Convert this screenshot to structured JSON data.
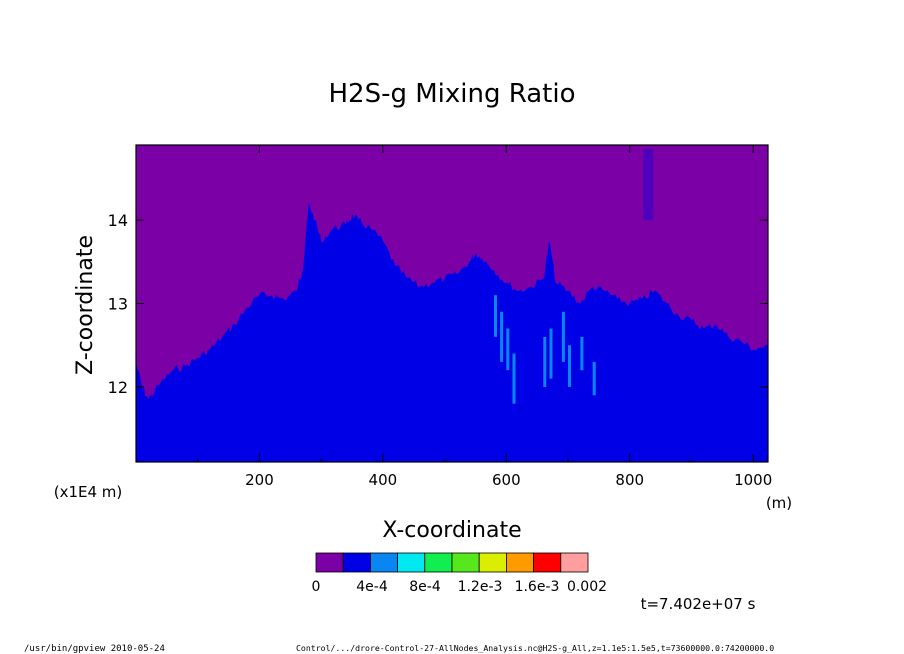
{
  "chart_data": {
    "type": "heatmap",
    "title": "H2S-g Mixing Ratio",
    "xlabel": "X-coordinate",
    "ylabel": "Z-coordinate",
    "x_unit": "(m)",
    "y_scale_label": "(x1E4 m)",
    "xlim": [
      0,
      1024
    ],
    "ylim": [
      11.1,
      14.9
    ],
    "x_ticks": [
      200,
      400,
      600,
      800,
      1000
    ],
    "y_ticks": [
      12,
      13,
      14
    ],
    "x_tick_labels": [
      "200",
      "400",
      "600",
      "800",
      "1000"
    ],
    "y_tick_labels": [
      "12",
      "13",
      "14"
    ],
    "background_level_color": "#7b00a6",
    "colorbar": {
      "colors": [
        "#7b00a6",
        "#0000e6",
        "#0a86f2",
        "#00e8f0",
        "#10ee50",
        "#56e81c",
        "#dcee00",
        "#ff9a00",
        "#ff0000",
        "#ff9e9e"
      ],
      "labels": [
        "0",
        "4e-4",
        "8e-4",
        "1.2e-3",
        "1.6e-3",
        "0.002"
      ]
    },
    "interface_boundary": {
      "x": [
        0,
        10,
        20,
        40,
        60,
        80,
        100,
        120,
        140,
        160,
        180,
        200,
        220,
        240,
        260,
        270,
        275,
        280,
        290,
        300,
        320,
        340,
        350,
        360,
        380,
        400,
        420,
        440,
        460,
        480,
        500,
        520,
        540,
        550,
        560,
        580,
        600,
        620,
        640,
        660,
        670,
        680,
        700,
        720,
        740,
        760,
        780,
        800,
        820,
        840,
        860,
        880,
        900,
        920,
        940,
        960,
        980,
        1000,
        1024
      ],
      "z": [
        12.3,
        12.0,
        11.85,
        12.05,
        12.2,
        12.25,
        12.35,
        12.45,
        12.6,
        12.75,
        12.95,
        13.1,
        13.1,
        13.05,
        13.15,
        13.4,
        13.8,
        14.2,
        14.0,
        13.75,
        13.9,
        13.95,
        14.05,
        14.0,
        13.9,
        13.75,
        13.45,
        13.3,
        13.2,
        13.25,
        13.3,
        13.35,
        13.5,
        13.6,
        13.55,
        13.4,
        13.25,
        13.15,
        13.2,
        13.3,
        13.75,
        13.25,
        13.15,
        13.0,
        13.2,
        13.15,
        13.05,
        13.0,
        13.05,
        13.15,
        13.0,
        12.85,
        12.8,
        12.7,
        12.75,
        12.6,
        12.55,
        12.45,
        12.5
      ]
    },
    "annotation": "t=7.402e+07 s"
  },
  "footer": {
    "left": "/usr/bin/gpview  2010-05-24",
    "right": "Control/.../drore-Control-27-AllNodes_Analysis.nc@H2S-g_All,z=1.1e5:1.5e5,t=73600000.0:74200000.0"
  }
}
